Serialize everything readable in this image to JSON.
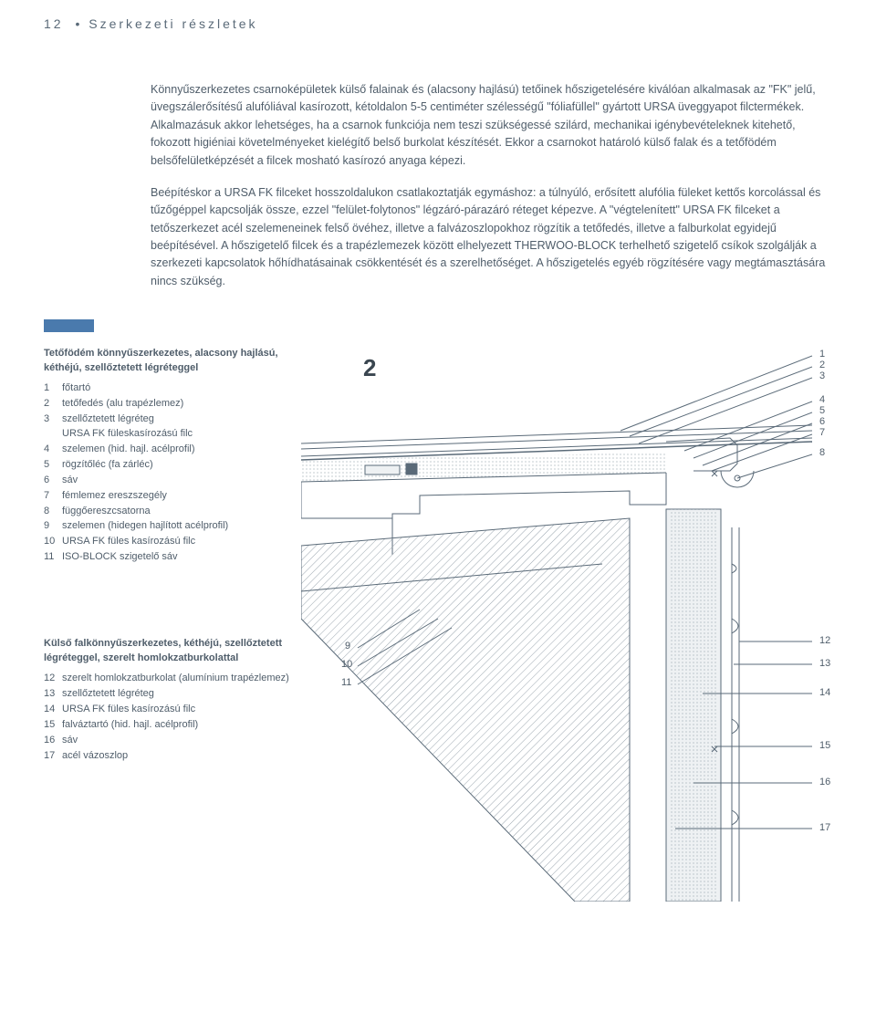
{
  "header": {
    "page_number": "12",
    "bullet": "•",
    "title": "Szerkezeti részletek"
  },
  "paragraphs": [
    "Könnyűszerkezetes csarnoképületek külső falainak és (alacsony hajlású) tetőinek hőszigetelésére kiválóan alkalmasak az \"FK\" jelű, üvegszálerősítésű alufóliával kasírozott, kétoldalon 5-5 centiméter szélességű \"fóliafüllel\" gyártott URSA üveggyapot filctermékek. Alkalmazásuk akkor lehetséges, ha a csarnok funkciója nem teszi szükségessé szilárd, mechanikai igénybevételeknek kitehető, fokozott higiéniai követelményeket kielégítő belső burkolat készítését. Ekkor a csarnokot határoló külső falak és a tetőfödém belsőfelületképzését a filcek mosható kasírozó anyaga képezi.",
    "Beépítéskor a URSA FK filceket hosszoldalukon csatlakoztatják egymáshoz: a túlnyúló, erősített alufólia füleket kettős korcolással és tűzőgéppel kapcsolják össze, ezzel \"felület-folytonos\" légzáró-párazáró réteget képezve. A \"végtelenített\" URSA FK filceket a tetőszerkezet acél szelemeneinek felső övéhez, illetve a falvázoszlopokhoz rögzítik a tetőfedés, illetve a falburkolat egyidejű beépítésével. A hőszigetelő filcek és a trapézlemezek között elhelyezett THERWOO-BLOCK terhelhető szigetelő csíkok szolgálják a szerkezeti kapcsolatok hőhídhatásainak csökkentését és a szerelhetőséget. A hőszigetelés egyéb rögzítésére vagy megtámasztására nincs szükség."
  ],
  "legend1": {
    "title": "Tetőfödém könnyűszerkezetes, alacsony hajlású, kéthéjú, szellőztetett légréteggel",
    "items": [
      {
        "n": "1",
        "t": "főtartó"
      },
      {
        "n": "2",
        "t": "tetőfedés (alu trapézlemez)"
      },
      {
        "n": "3",
        "t": "szellőztetett légréteg\nURSA FK füleskasírozású filc"
      },
      {
        "n": "4",
        "t": "szelemen (hid. hajl. acélprofil)"
      },
      {
        "n": "5",
        "t": "rögzítőléc (fa zárléc)"
      },
      {
        "n": "6",
        "t": "sáv"
      },
      {
        "n": "7",
        "t": "fémlemez ereszszegély"
      },
      {
        "n": "8",
        "t": "függőereszcsatorna"
      },
      {
        "n": "9",
        "t": "szelemen (hidegen hajlított acélprofil)"
      },
      {
        "n": "10",
        "t": "URSA FK füles kasírozású filc"
      },
      {
        "n": "11",
        "t": "ISO-BLOCK szigetelő sáv"
      }
    ]
  },
  "legend2": {
    "title": "Külső falkönnyűszerkezetes, kéthéjú, szellőztetett légréteggel, szerelt homlokzatburkolattal",
    "items": [
      {
        "n": "12",
        "t": "szerelt homlokzatburkolat (alumínium trapézlemez)"
      },
      {
        "n": "13",
        "t": "szellőztetett légréteg"
      },
      {
        "n": "14",
        "t": "URSA FK füles kasírozású filc"
      },
      {
        "n": "15",
        "t": "falváztartó (hid. hajl. acélprofil)"
      },
      {
        "n": "16",
        "t": "sáv"
      },
      {
        "n": "17",
        "t": "acél vázoszlop"
      }
    ]
  },
  "diagram": {
    "big_label": "2",
    "callouts_right_top": [
      "1",
      "2",
      "3",
      "4",
      "5",
      "6",
      "7",
      "8"
    ],
    "callouts_left": [
      "9",
      "10",
      "11"
    ],
    "callouts_right_bottom": [
      "12",
      "13",
      "14",
      "15",
      "16",
      "17"
    ],
    "colors": {
      "line": "#5a6a78",
      "fill_light": "#eef1f3",
      "fill_hatch": "#d8dde1",
      "bg": "#ffffff"
    }
  }
}
